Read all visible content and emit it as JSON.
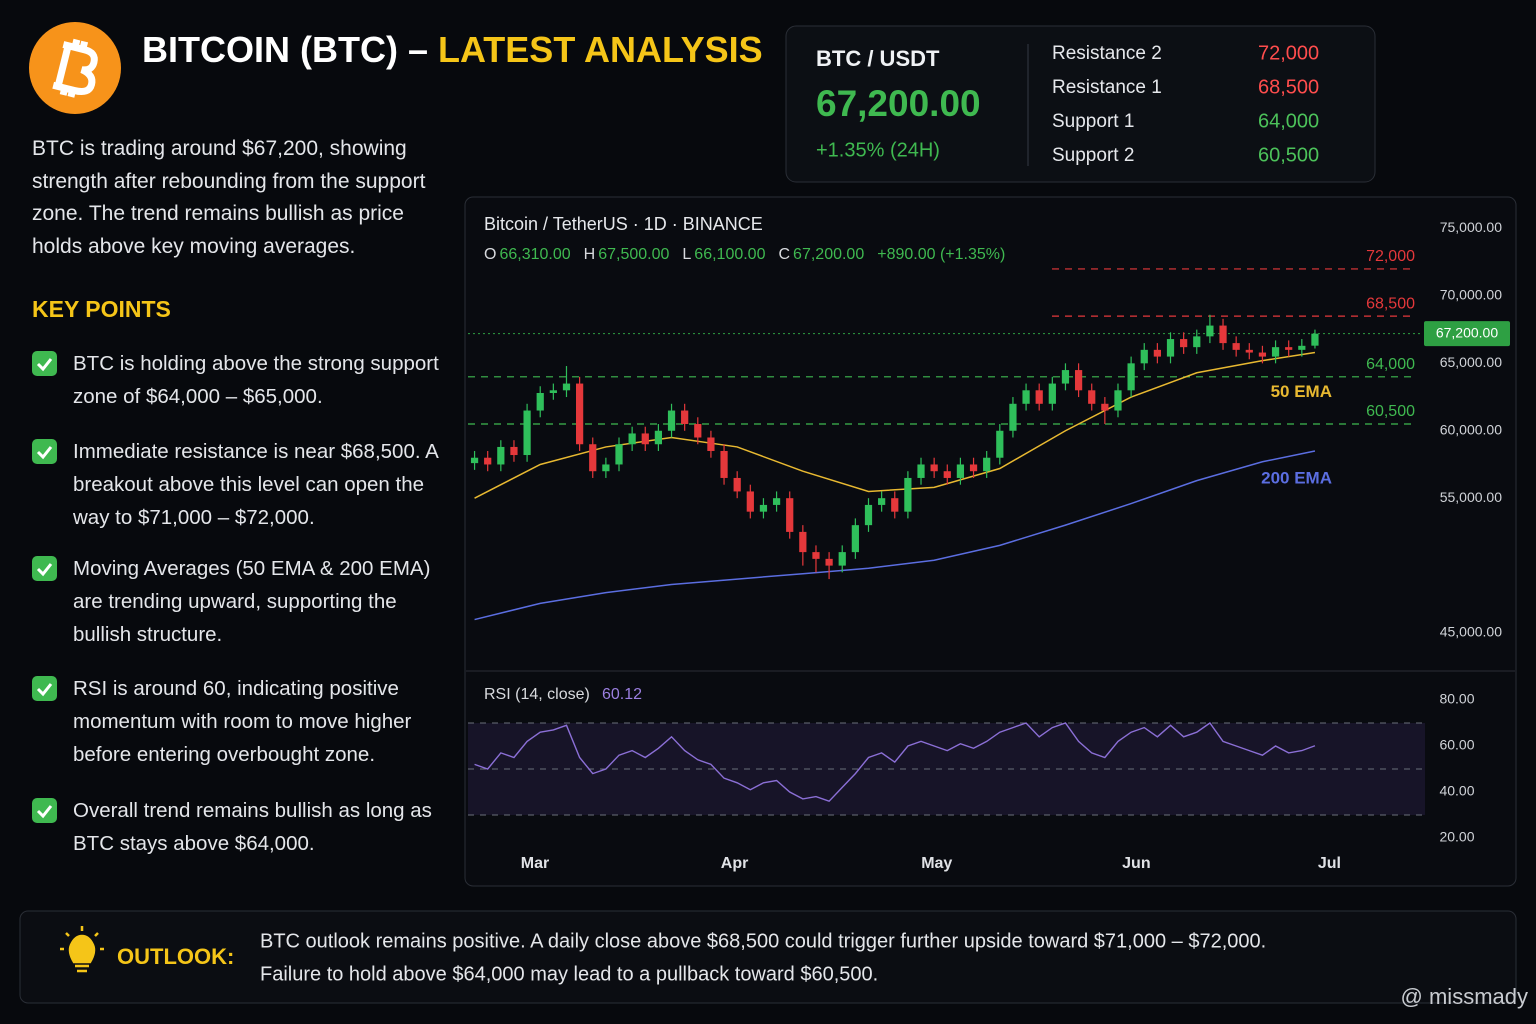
{
  "header": {
    "title_main": "BITCOIN (BTC) –",
    "title_accent": "LATEST ANALYSIS"
  },
  "description": "BTC is trading around $67,200, showing strength after rebounding from the support zone. The trend remains bullish as price holds above key moving averages.",
  "key_points": {
    "title": "KEY POINTS",
    "items": [
      "BTC is holding above the strong support zone of $64,000 – $65,000.",
      "Immediate resistance is near $68,500. A breakout above this level can open the way to $71,000 – $72,000.",
      "Moving Averages (50 EMA & 200 EMA) are trending upward, supporting the bullish structure.",
      "RSI is around 60, indicating positive momentum with room to move higher before entering overbought zone.",
      "Overall trend remains bullish as long as BTC stays above $64,000."
    ]
  },
  "price_panel": {
    "pair": "BTC / USDT",
    "price": "67,200.00",
    "change": "+1.35% (24H)",
    "levels": [
      {
        "name": "Resistance 2",
        "value": "72,000",
        "color": "#ff4d4d"
      },
      {
        "name": "Resistance 1",
        "value": "68,500",
        "color": "#ff4d4d"
      },
      {
        "name": "Support 1",
        "value": "64,000",
        "color": "#4cc25a"
      },
      {
        "name": "Support 2",
        "value": "60,500",
        "color": "#4cc25a"
      }
    ]
  },
  "chart_data": [
    {
      "type": "candlestick",
      "title": "Bitcoin / TetherUS · 1D · BINANCE",
      "ohlc_legend": [
        {
          "key": "O",
          "value": "66,310.00"
        },
        {
          "key": "H",
          "value": "67,500.00"
        },
        {
          "key": "L",
          "value": "66,100.00"
        },
        {
          "key": "C",
          "value": "67,200.00"
        }
      ],
      "change": "+890.00 (+1.35%)",
      "open": [
        57600,
        58000,
        57500,
        58800,
        58200,
        61500,
        62800,
        63000,
        63500,
        59000,
        57000,
        57500,
        59000,
        59800,
        59000,
        60000,
        61500,
        60500,
        59500,
        58500,
        56500,
        55500,
        54000,
        54500,
        55000,
        52500,
        51000,
        50500,
        50000,
        51000,
        53000,
        54500,
        55000,
        54000,
        56500,
        57500,
        57000,
        56500,
        57500,
        57000,
        58000,
        60000,
        62000,
        63000,
        62000,
        63500,
        64500,
        63000,
        62000,
        61500,
        63000,
        65000,
        66000,
        65500,
        66800,
        66200,
        67000,
        67800,
        66500,
        66000,
        65800,
        65500,
        66200,
        66000,
        66310
      ],
      "high": [
        58500,
        58500,
        59300,
        59300,
        62000,
        63300,
        63500,
        64800,
        64000,
        59500,
        58000,
        59500,
        60300,
        60300,
        60500,
        62000,
        62000,
        61000,
        60000,
        59000,
        57000,
        56000,
        55000,
        55500,
        55500,
        53000,
        51500,
        51000,
        51500,
        53500,
        55000,
        55500,
        55500,
        57000,
        58000,
        58000,
        57500,
        58000,
        58000,
        58500,
        60500,
        62500,
        63500,
        63500,
        64000,
        65000,
        65000,
        63500,
        62500,
        63500,
        65500,
        66500,
        66500,
        67300,
        67300,
        67500,
        68600,
        68300,
        67000,
        66500,
        66300,
        66700,
        66700,
        66800,
        67500
      ],
      "low": [
        57100,
        57000,
        57000,
        57700,
        57700,
        61000,
        62300,
        62500,
        58500,
        56500,
        56500,
        57000,
        58500,
        58500,
        58500,
        59500,
        60000,
        59000,
        58000,
        56000,
        55000,
        53500,
        53500,
        54000,
        52000,
        50000,
        49500,
        49000,
        49500,
        50500,
        52500,
        54000,
        53500,
        53500,
        56000,
        56500,
        56000,
        56000,
        56500,
        56500,
        57500,
        59500,
        61500,
        61500,
        61500,
        63000,
        62500,
        61500,
        60500,
        61000,
        62500,
        64500,
        65000,
        65000,
        65700,
        65700,
        66500,
        66000,
        65500,
        65300,
        65000,
        65000,
        65500,
        65500,
        66100
      ],
      "close": [
        58000,
        57500,
        58800,
        58200,
        61500,
        62800,
        63000,
        63500,
        59000,
        57000,
        57500,
        59000,
        59800,
        59000,
        60000,
        61500,
        60500,
        59500,
        58500,
        56500,
        55500,
        54000,
        54500,
        55000,
        52500,
        51000,
        50500,
        50000,
        51000,
        53000,
        54500,
        55000,
        54000,
        56500,
        57500,
        57000,
        56500,
        57500,
        57000,
        58000,
        60000,
        62000,
        63000,
        62000,
        63500,
        64500,
        63000,
        62000,
        61500,
        63000,
        65000,
        66000,
        65500,
        66800,
        66200,
        67000,
        67800,
        66500,
        66000,
        65800,
        65500,
        66200,
        66000,
        66300,
        67200
      ],
      "up_color": "#2fbf5b",
      "down_color": "#e5383b",
      "xlim": [
        -0.5,
        72
      ],
      "xticks": [
        {
          "value": 4.6,
          "label": "Mar"
        },
        {
          "value": 19.8,
          "label": "Apr"
        },
        {
          "value": 35.2,
          "label": "May"
        },
        {
          "value": 50.4,
          "label": "Jun"
        },
        {
          "value": 65.1,
          "label": "Jul"
        }
      ],
      "ylim": [
        43000,
        76000
      ],
      "yticks": [
        {
          "value": 75000,
          "label": "75,000.00"
        },
        {
          "value": 70000,
          "label": "70,000.00"
        },
        {
          "value": 65000,
          "label": "65,000.00"
        },
        {
          "value": 60000,
          "label": "60,000.00"
        },
        {
          "value": 55000,
          "label": "55,000.00"
        },
        {
          "value": 45000,
          "label": "45,000.00"
        }
      ],
      "series": [
        {
          "name": "50 EMA",
          "color": "#e8b931",
          "x": [
            0,
            5,
            10,
            15,
            20,
            25,
            30,
            35,
            40,
            45,
            50,
            55,
            60,
            64
          ],
          "values": [
            55000,
            57500,
            58800,
            59500,
            58800,
            57000,
            55500,
            55800,
            57200,
            60000,
            62500,
            64300,
            65200,
            65800
          ]
        },
        {
          "name": "200 EMA",
          "color": "#5b6ee1",
          "x": [
            0,
            5,
            10,
            15,
            20,
            25,
            30,
            35,
            40,
            45,
            50,
            55,
            60,
            64
          ],
          "values": [
            46000,
            47200,
            48000,
            48600,
            49000,
            49400,
            49800,
            50400,
            51500,
            53000,
            54600,
            56300,
            57700,
            58500
          ]
        }
      ],
      "levels": {
        "values": [
          72000,
          68500,
          64000,
          60500
        ],
        "value_labels": [
          "72,000",
          "68,500",
          "64,000",
          "60,500"
        ],
        "colors": [
          "#e5383b",
          "#e5383b",
          "#3fb950",
          "#3fb950"
        ]
      },
      "current": {
        "value": 67200,
        "value_label": "67,200.00",
        "color": "#2ea043"
      }
    },
    {
      "type": "line",
      "title": "RSI (14, close)",
      "value": 60.12,
      "value_label": "60.12",
      "color": "#8b6fd6",
      "values": [
        52,
        50,
        57,
        55,
        62,
        66,
        67,
        69,
        55,
        48,
        50,
        56,
        58,
        55,
        59,
        64,
        58,
        54,
        52,
        46,
        44,
        41,
        44,
        45,
        40,
        37,
        38,
        36,
        42,
        48,
        55,
        57,
        53,
        60,
        62,
        60,
        58,
        61,
        59,
        62,
        66,
        68,
        70,
        64,
        68,
        70,
        62,
        57,
        55,
        62,
        66,
        68,
        64,
        69,
        64,
        66,
        70,
        62,
        60,
        58,
        56,
        60,
        57,
        58,
        60.12
      ],
      "ylim": [
        20,
        80
      ],
      "yticks": [
        {
          "value": 80,
          "label": "80.00"
        },
        {
          "value": 60,
          "label": "60.00"
        },
        {
          "value": 40,
          "label": "40.00"
        },
        {
          "value": 20,
          "label": "20.00"
        }
      ],
      "guide_lines": [
        70,
        50,
        30
      ]
    }
  ],
  "outlook": {
    "label": "OUTLOOK:",
    "lines": [
      "BTC outlook remains positive. A daily close above $68,500 could trigger further upside toward $71,000 – $72,000.",
      "Failure to hold above $64,000 may lead to a pullback toward $60,500."
    ]
  },
  "watermark": "@ missmady"
}
